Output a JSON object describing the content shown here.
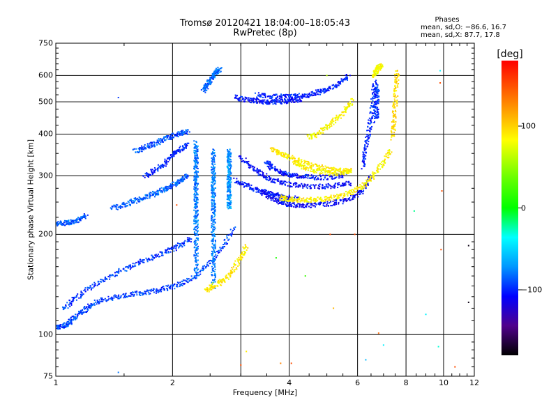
{
  "chart_data": {
    "type": "scatter",
    "title": "Tromsø 20120421 18:04:00–18:05:43",
    "subtitle": "RwPretec (8p)",
    "xlabel": "Frequency [MHz]",
    "ylabel": "Stationary phase Virtual Height [km]",
    "x_scale": "log",
    "y_scale": "log",
    "xlim": [
      1,
      12
    ],
    "ylim": [
      75,
      750
    ],
    "grid": true,
    "x_ticks": [
      1,
      2,
      4,
      6,
      8,
      10,
      12
    ],
    "x_tick_labels": [
      "1",
      "2",
      "4",
      "6",
      "8",
      "10",
      "12"
    ],
    "y_ticks": [
      75,
      100,
      200,
      300,
      400,
      500,
      600,
      750
    ],
    "y_tick_labels": [
      "75",
      "100",
      "200",
      "300",
      "400",
      "500",
      "600",
      "750"
    ],
    "x_gridlines": [
      2,
      3,
      4,
      6,
      8,
      10
    ],
    "y_gridlines": [
      100,
      200,
      300,
      400,
      500,
      600
    ],
    "phases_legend": {
      "heading": "Phases",
      "line1": "mean, sd,O: −86.6, 16.7",
      "line2": "mean, sd,X:  87.7, 17.8"
    },
    "colorbar": {
      "label": "[deg]",
      "range": [
        -180,
        180
      ],
      "ticks": [
        100,
        0,
        -100
      ],
      "tick_labels": [
        "100",
        "0",
        "−100"
      ]
    },
    "traces": [
      {
        "name": "",
        "phase": -92,
        "x": [
          1.0,
          1.04,
          1.08,
          1.12,
          1.18,
          1.25,
          1.35,
          1.5,
          1.65,
          1.8,
          1.95,
          2.1,
          2.3,
          2.5,
          2.7,
          2.9
        ],
        "y": [
          105,
          106,
          108,
          113,
          118,
          124,
          128,
          131,
          133,
          135,
          138,
          142,
          150,
          165,
          185,
          210
        ]
      },
      {
        "name": "",
        "phase": -95,
        "x": [
          1.05,
          1.12,
          1.22,
          1.35,
          1.5,
          1.65,
          1.8,
          1.95,
          2.1,
          2.25
        ],
        "y": [
          120,
          128,
          138,
          148,
          157,
          165,
          172,
          178,
          186,
          195
        ]
      },
      {
        "name": "",
        "phase": -88,
        "x": [
          1.0,
          1.05,
          1.1,
          1.15,
          1.2
        ],
        "y": [
          214,
          216,
          218,
          222,
          228
        ]
      },
      {
        "name": "",
        "phase": -85,
        "x": [
          1.4,
          1.5,
          1.6,
          1.7,
          1.8,
          1.9,
          2.0,
          2.1,
          2.2
        ],
        "y": [
          240,
          245,
          252,
          258,
          265,
          272,
          280,
          290,
          300
        ]
      },
      {
        "name": "",
        "phase": -90,
        "x": [
          1.6,
          1.7,
          1.8,
          1.9,
          2.0,
          2.1,
          2.2
        ],
        "y": [
          355,
          365,
          375,
          385,
          395,
          402,
          408
        ]
      },
      {
        "name": "",
        "phase": -100,
        "x": [
          1.7,
          1.8,
          1.9,
          2.0,
          2.1,
          2.2
        ],
        "y": [
          300,
          310,
          325,
          345,
          360,
          375
        ]
      },
      {
        "name": "",
        "phase": -80,
        "x": [
          2.3,
          2.3,
          2.3,
          2.3,
          2.3,
          2.3,
          2.3,
          2.3,
          2.3,
          2.3,
          2.3,
          2.3
        ],
        "y": [
          150,
          170,
          190,
          210,
          230,
          250,
          270,
          290,
          310,
          330,
          350,
          380
        ]
      },
      {
        "name": "",
        "phase": -78,
        "x": [
          2.55,
          2.55,
          2.55,
          2.55,
          2.55,
          2.55,
          2.55,
          2.55,
          2.55,
          2.55,
          2.55
        ],
        "y": [
          140,
          160,
          180,
          200,
          220,
          240,
          260,
          280,
          300,
          330,
          360
        ]
      },
      {
        "name": "",
        "phase": -72,
        "x": [
          2.8,
          2.8,
          2.8,
          2.8,
          2.8,
          2.8,
          2.8,
          2.8
        ],
        "y": [
          240,
          255,
          270,
          285,
          300,
          320,
          340,
          360
        ]
      },
      {
        "name": "",
        "phase": -82,
        "x": [
          2.4,
          2.45,
          2.5,
          2.55,
          2.6,
          2.65
        ],
        "y": [
          540,
          560,
          580,
          600,
          615,
          625
        ]
      },
      {
        "name": "",
        "phase": -105,
        "x": [
          2.9,
          3.1,
          3.3,
          3.5,
          3.7,
          3.9,
          4.1,
          4.3
        ],
        "y": [
          515,
          508,
          503,
          500,
          500,
          502,
          505,
          510
        ]
      },
      {
        "name": "",
        "phase": -100,
        "x": [
          3.3,
          3.6,
          3.9,
          4.2,
          4.5,
          4.8,
          5.1,
          5.4,
          5.7
        ],
        "y": [
          525,
          520,
          518,
          520,
          525,
          535,
          550,
          570,
          598
        ]
      },
      {
        "name": "",
        "phase": -110,
        "x": [
          3.4,
          3.6,
          3.8,
          4.0,
          4.3,
          4.7,
          5.2,
          5.7,
          6.2,
          6.5
        ],
        "y": [
          268,
          258,
          250,
          246,
          244,
          245,
          248,
          255,
          270,
          300
        ]
      },
      {
        "name": "",
        "phase": -108,
        "x": [
          3.0,
          3.2,
          3.4,
          3.6,
          3.9,
          4.3,
          4.8,
          5.3,
          5.8
        ],
        "y": [
          340,
          318,
          302,
          292,
          284,
          280,
          278,
          280,
          285
        ]
      },
      {
        "name": "",
        "phase": -105,
        "x": [
          2.9,
          3.1,
          3.3,
          3.5,
          3.7,
          3.9,
          4.2
        ],
        "y": [
          290,
          280,
          272,
          266,
          262,
          258,
          256
        ]
      },
      {
        "name": "",
        "phase": -102,
        "x": [
          3.5,
          3.6,
          3.8,
          4.0,
          4.3,
          4.7,
          5.2,
          5.6
        ],
        "y": [
          330,
          318,
          308,
          302,
          298,
          296,
          298,
          302
        ]
      },
      {
        "name": "",
        "phase": -100,
        "x": [
          6.2,
          6.3,
          6.4,
          6.5,
          6.6,
          6.65
        ],
        "y": [
          320,
          360,
          400,
          450,
          520,
          580
        ]
      },
      {
        "name": "",
        "phase": -98,
        "x": [
          6.7,
          6.72,
          6.74,
          6.76
        ],
        "y": [
          440,
          480,
          520,
          560
        ]
      },
      {
        "name": "",
        "phase": 92,
        "x": [
          3.6,
          3.8,
          4.0,
          4.3,
          4.7,
          5.1,
          5.5,
          5.8
        ],
        "y": [
          360,
          350,
          340,
          330,
          320,
          313,
          310,
          310
        ]
      },
      {
        "name": "",
        "phase": 88,
        "x": [
          3.8,
          4.0,
          4.3,
          4.6,
          5.0,
          5.4,
          5.8,
          6.2,
          6.6,
          7.0,
          7.3
        ],
        "y": [
          258,
          255,
          254,
          254,
          256,
          260,
          268,
          280,
          300,
          330,
          360
        ]
      },
      {
        "name": "",
        "phase": 85,
        "x": [
          4.1,
          4.3,
          4.6,
          5.0,
          5.4,
          5.8
        ],
        "y": [
          330,
          320,
          312,
          306,
          305,
          308
        ]
      },
      {
        "name": "",
        "phase": 84,
        "x": [
          4.5,
          4.7,
          5.0,
          5.3,
          5.6,
          5.85
        ],
        "y": [
          392,
          400,
          420,
          445,
          475,
          510
        ]
      },
      {
        "name": "",
        "phase": 90,
        "x": [
          2.45,
          2.55,
          2.7,
          2.85,
          3.0,
          3.1
        ],
        "y": [
          136,
          140,
          145,
          155,
          170,
          185
        ]
      },
      {
        "name": "",
        "phase": 95,
        "x": [
          7.4,
          7.45,
          7.5,
          7.55,
          7.6
        ],
        "y": [
          390,
          440,
          500,
          560,
          620
        ]
      },
      {
        "name": "",
        "phase": 80,
        "x": [
          6.6,
          6.7,
          6.8,
          6.9
        ],
        "y": [
          600,
          620,
          635,
          640
        ]
      }
    ],
    "scattered_points": [
      {
        "x": 1.45,
        "y": 515,
        "phase": -95
      },
      {
        "x": 1.45,
        "y": 77,
        "phase": -80
      },
      {
        "x": 2.05,
        "y": 245,
        "phase": 150
      },
      {
        "x": 3.0,
        "y": 81,
        "phase": 150
      },
      {
        "x": 3.1,
        "y": 89,
        "phase": 90
      },
      {
        "x": 3.8,
        "y": 82,
        "phase": 130
      },
      {
        "x": 4.05,
        "y": 82,
        "phase": 150
      },
      {
        "x": 5.1,
        "y": 200,
        "phase": 150
      },
      {
        "x": 5.2,
        "y": 120,
        "phase": 110
      },
      {
        "x": 5.9,
        "y": 200,
        "phase": 150
      },
      {
        "x": 6.3,
        "y": 84,
        "phase": -60
      },
      {
        "x": 7.0,
        "y": 93,
        "phase": -40
      },
      {
        "x": 6.8,
        "y": 101,
        "phase": 140
      },
      {
        "x": 8.4,
        "y": 235,
        "phase": -20
      },
      {
        "x": 9.0,
        "y": 115,
        "phase": -40
      },
      {
        "x": 9.7,
        "y": 92,
        "phase": -30
      },
      {
        "x": 9.85,
        "y": 180,
        "phase": 150
      },
      {
        "x": 9.9,
        "y": 270,
        "phase": 150
      },
      {
        "x": 9.8,
        "y": 570,
        "phase": 150
      },
      {
        "x": 9.8,
        "y": 620,
        "phase": -40
      },
      {
        "x": 10.7,
        "y": 80,
        "phase": 150
      },
      {
        "x": 11.6,
        "y": 185,
        "phase": -175
      },
      {
        "x": 11.6,
        "y": 125,
        "phase": -175
      },
      {
        "x": 3.7,
        "y": 170,
        "phase": 10
      },
      {
        "x": 4.4,
        "y": 150,
        "phase": 20
      },
      {
        "x": 5.0,
        "y": 600,
        "phase": 60
      }
    ]
  }
}
